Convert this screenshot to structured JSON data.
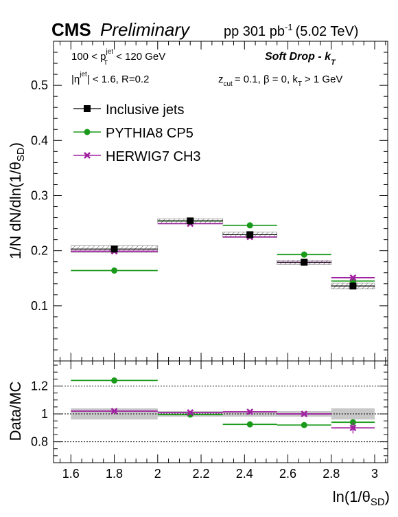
{
  "header": {
    "experiment": "CMS",
    "status": "Preliminary",
    "lumi": "pp 301 pb",
    "lumi_sup": "-1",
    "energy": "(5.02 TeV)"
  },
  "annotations": {
    "selection_line1": "100 < p",
    "selection_line1_sup": "jet",
    "selection_line1_sub": "T",
    "selection_line1_end": "< 120 GeV",
    "selection_line2_a": "|η",
    "selection_line2_sup": "jet",
    "selection_line2_b": "| < 1.6, R=0.2",
    "method_a": "Soft Drop - k",
    "method_sub": "T",
    "params": "z",
    "params_sub": "cut",
    "params_mid": "= 0.1, β = 0, k",
    "params_sub2": "T",
    "params_end": "> 1 GeV"
  },
  "colors": {
    "data": "#000000",
    "pythia": "#1a9a1a",
    "herwig": "#a020a0",
    "unc_band": "#c8c8c8"
  },
  "chart_data": [
    {
      "type": "scatter",
      "panel": "main",
      "ylabel": "1/N dN/dln(1/θ_SD)",
      "ylim": [
        0,
        0.58
      ],
      "xlim": [
        1.52,
        3.06
      ],
      "yticks": [
        "0.1",
        "0.2",
        "0.3",
        "0.4",
        "0.5"
      ],
      "bins": [
        [
          1.6,
          2.0
        ],
        [
          2.0,
          2.3
        ],
        [
          2.3,
          2.55
        ],
        [
          2.55,
          2.8
        ],
        [
          2.8,
          3.0
        ]
      ],
      "x": [
        1.8,
        2.15,
        2.425,
        2.675,
        2.9
      ],
      "series": [
        {
          "name": "Inclusive jets",
          "values": [
            0.203,
            0.254,
            0.229,
            0.179,
            0.136
          ],
          "syst": [
            0.006,
            0.004,
            0.005,
            0.004,
            0.005
          ]
        },
        {
          "name": "PYTHIA8 CP5",
          "values": [
            0.164,
            0.254,
            0.246,
            0.193,
            0.145
          ]
        },
        {
          "name": "HERWIG7 CH3",
          "values": [
            0.199,
            0.249,
            0.225,
            0.179,
            0.151
          ]
        }
      ]
    },
    {
      "type": "scatter",
      "panel": "ratio",
      "ylabel": "Data/MC",
      "xlabel": "ln(1/θ_SD)",
      "ylim": [
        0.65,
        1.38
      ],
      "xlim": [
        1.52,
        3.06
      ],
      "yticks": [
        "0.8",
        "1",
        "1.2"
      ],
      "xticks": [
        "1.6",
        "1.8",
        "2",
        "2.2",
        "2.4",
        "2.6",
        "2.8",
        "3"
      ],
      "reference_lines": [
        0.8,
        1.0,
        1.2
      ],
      "bins": [
        [
          1.6,
          2.0
        ],
        [
          2.0,
          2.3
        ],
        [
          2.3,
          2.55
        ],
        [
          2.55,
          2.8
        ],
        [
          2.8,
          3.0
        ]
      ],
      "x": [
        1.8,
        2.15,
        2.425,
        2.675,
        2.9
      ],
      "band": [
        0.04,
        0.02,
        0.02,
        0.02,
        0.04
      ],
      "series": [
        {
          "name": "PYTHIA8 CP5",
          "values": [
            1.24,
            0.995,
            0.925,
            0.92,
            0.94
          ]
        },
        {
          "name": "HERWIG7 CH3",
          "values": [
            1.02,
            1.01,
            1.015,
            1.0,
            0.9
          ],
          "err": [
            0,
            0,
            0,
            0,
            0.04
          ]
        }
      ]
    }
  ]
}
